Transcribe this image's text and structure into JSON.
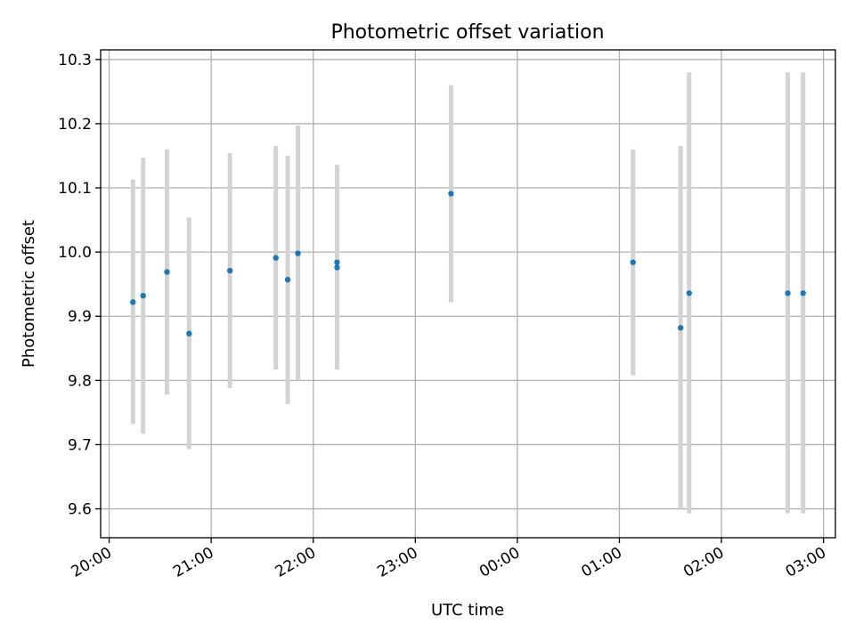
{
  "chart_data": {
    "type": "scatter",
    "title": "Photometric offset variation",
    "xlabel": "UTC time",
    "ylabel": "Photometric offset",
    "x_type": "time",
    "x_tick_labels": [
      "20:00",
      "21:00",
      "22:00",
      "23:00",
      "00:00",
      "01:00",
      "02:00",
      "03:00"
    ],
    "x_ticks": [
      "20:00",
      "21:00",
      "22:00",
      "23:00",
      "00:00",
      "01:00",
      "02:00",
      "03:00"
    ],
    "xlim": [
      "19:55",
      "03:07"
    ],
    "y_ticks": [
      9.6,
      9.7,
      9.8,
      9.9,
      10.0,
      10.1,
      10.2,
      10.3
    ],
    "y_tick_labels": [
      "9.6",
      "9.7",
      "9.8",
      "9.9",
      "10.0",
      "10.1",
      "10.2",
      "10.3"
    ],
    "ylim": [
      9.555,
      10.315
    ],
    "grid": true,
    "point_color": "#1f77b4",
    "errorbar_color": "#d3d3d3",
    "points": [
      {
        "time": "20:14",
        "y": 9.922,
        "ylo": 9.732,
        "yhi": 10.113
      },
      {
        "time": "20:20",
        "y": 9.932,
        "ylo": 9.717,
        "yhi": 10.147
      },
      {
        "time": "20:34",
        "y": 9.969,
        "ylo": 9.778,
        "yhi": 10.16
      },
      {
        "time": "20:47",
        "y": 9.873,
        "ylo": 9.693,
        "yhi": 10.054
      },
      {
        "time": "21:11",
        "y": 9.971,
        "ylo": 9.788,
        "yhi": 10.154
      },
      {
        "time": "21:38",
        "y": 9.991,
        "ylo": 9.817,
        "yhi": 10.165
      },
      {
        "time": "21:45",
        "y": 9.957,
        "ylo": 9.763,
        "yhi": 10.15
      },
      {
        "time": "21:51",
        "y": 9.998,
        "ylo": 9.8,
        "yhi": 10.197
      },
      {
        "time": "22:14",
        "y": 9.976,
        "ylo": 9.817,
        "yhi": 10.135
      },
      {
        "time": "22:14",
        "y": 9.984,
        "ylo": 9.833,
        "yhi": 10.136
      },
      {
        "time": "23:21",
        "y": 10.091,
        "ylo": 9.922,
        "yhi": 10.26
      },
      {
        "time": "01:08",
        "y": 9.984,
        "ylo": 9.808,
        "yhi": 10.16
      },
      {
        "time": "01:36",
        "y": 9.882,
        "ylo": 9.6,
        "yhi": 10.165
      },
      {
        "time": "01:41",
        "y": 9.936,
        "ylo": 9.593,
        "yhi": 10.28
      },
      {
        "time": "02:39",
        "y": 9.936,
        "ylo": 9.593,
        "yhi": 10.28
      },
      {
        "time": "02:48",
        "y": 9.936,
        "ylo": 9.593,
        "yhi": 10.28
      }
    ]
  }
}
